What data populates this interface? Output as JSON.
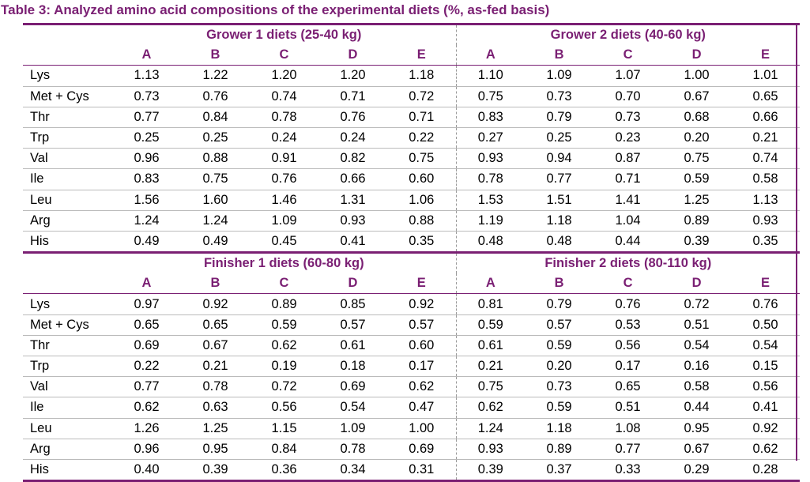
{
  "title": "Table 3:  Analyzed amino acid compositions of the experimental diets (%, as-fed basis)",
  "diet_columns": [
    "A",
    "B",
    "C",
    "D",
    "E"
  ],
  "sections": [
    {
      "groups": [
        "Grower 1 diets (25-40 kg)",
        "Grower 2 diets (40-60 kg)"
      ],
      "rows": [
        {
          "label": "Lys",
          "values": [
            "1.13",
            "1.22",
            "1.20",
            "1.20",
            "1.18",
            "1.10",
            "1.09",
            "1.07",
            "1.00",
            "1.01"
          ]
        },
        {
          "label": "Met + Cys",
          "values": [
            "0.73",
            "0.76",
            "0.74",
            "0.71",
            "0.72",
            "0.75",
            "0.73",
            "0.70",
            "0.67",
            "0.65"
          ]
        },
        {
          "label": "Thr",
          "values": [
            "0.77",
            "0.84",
            "0.78",
            "0.76",
            "0.71",
            "0.83",
            "0.79",
            "0.73",
            "0.68",
            "0.66"
          ]
        },
        {
          "label": "Trp",
          "values": [
            "0.25",
            "0.25",
            "0.24",
            "0.24",
            "0.22",
            "0.27",
            "0.25",
            "0.23",
            "0.20",
            "0.21"
          ]
        },
        {
          "label": "Val",
          "values": [
            "0.96",
            "0.88",
            "0.91",
            "0.82",
            "0.75",
            "0.93",
            "0.94",
            "0.87",
            "0.75",
            "0.74"
          ]
        },
        {
          "label": "Ile",
          "values": [
            "0.83",
            "0.75",
            "0.76",
            "0.66",
            "0.60",
            "0.78",
            "0.77",
            "0.71",
            "0.59",
            "0.58"
          ]
        },
        {
          "label": "Leu",
          "values": [
            "1.56",
            "1.60",
            "1.46",
            "1.31",
            "1.06",
            "1.53",
            "1.51",
            "1.41",
            "1.25",
            "1.13"
          ]
        },
        {
          "label": "Arg",
          "values": [
            "1.24",
            "1.24",
            "1.09",
            "0.93",
            "0.88",
            "1.19",
            "1.18",
            "1.04",
            "0.89",
            "0.93"
          ]
        },
        {
          "label": "His",
          "values": [
            "0.49",
            "0.49",
            "0.45",
            "0.41",
            "0.35",
            "0.48",
            "0.48",
            "0.44",
            "0.39",
            "0.35"
          ]
        }
      ]
    },
    {
      "groups": [
        "Finisher 1 diets (60-80 kg)",
        "Finisher 2 diets (80-110 kg)"
      ],
      "rows": [
        {
          "label": "Lys",
          "values": [
            "0.97",
            "0.92",
            "0.89",
            "0.85",
            "0.92",
            "0.81",
            "0.79",
            "0.76",
            "0.72",
            "0.76"
          ]
        },
        {
          "label": "Met + Cys",
          "values": [
            "0.65",
            "0.65",
            "0.59",
            "0.57",
            "0.57",
            "0.59",
            "0.57",
            "0.53",
            "0.51",
            "0.50"
          ]
        },
        {
          "label": "Thr",
          "values": [
            "0.69",
            "0.67",
            "0.62",
            "0.61",
            "0.60",
            "0.61",
            "0.59",
            "0.56",
            "0.54",
            "0.54"
          ]
        },
        {
          "label": "Trp",
          "values": [
            "0.22",
            "0.21",
            "0.19",
            "0.18",
            "0.17",
            "0.21",
            "0.20",
            "0.17",
            "0.16",
            "0.15"
          ]
        },
        {
          "label": "Val",
          "values": [
            "0.77",
            "0.78",
            "0.72",
            "0.69",
            "0.62",
            "0.75",
            "0.73",
            "0.65",
            "0.58",
            "0.56"
          ]
        },
        {
          "label": "Ile",
          "values": [
            "0.62",
            "0.63",
            "0.56",
            "0.54",
            "0.47",
            "0.62",
            "0.59",
            "0.51",
            "0.44",
            "0.41"
          ]
        },
        {
          "label": "Leu",
          "values": [
            "1.26",
            "1.25",
            "1.15",
            "1.09",
            "1.00",
            "1.24",
            "1.18",
            "1.08",
            "0.95",
            "0.92"
          ]
        },
        {
          "label": "Arg",
          "values": [
            "0.96",
            "0.95",
            "0.84",
            "0.78",
            "0.69",
            "0.93",
            "0.89",
            "0.77",
            "0.67",
            "0.62"
          ]
        },
        {
          "label": "His",
          "values": [
            "0.40",
            "0.39",
            "0.36",
            "0.34",
            "0.31",
            "0.39",
            "0.37",
            "0.33",
            "0.29",
            "0.28"
          ]
        }
      ]
    }
  ],
  "colors": {
    "accent": "#7a1f73",
    "text": "#000000",
    "rule": "#bbbbbb"
  }
}
